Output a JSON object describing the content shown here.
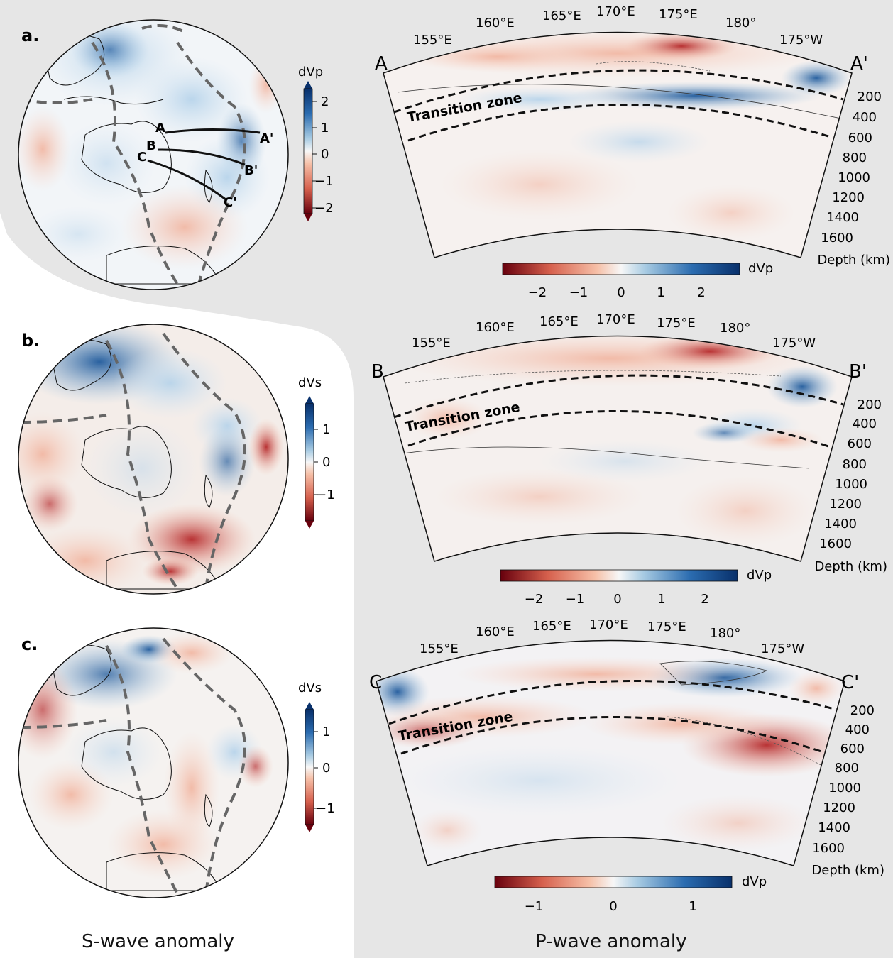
{
  "colors": {
    "panel_bg": "#e6e6e6",
    "blue_strong": "#2a5ea0",
    "blue_light": "#c9dcee",
    "red_strong": "#c23a37",
    "red_light": "#f6cdbf",
    "neutral": "#f7f7f7",
    "plate_boundary": "#666666",
    "coastline": "#111111"
  },
  "panels": {
    "a": {
      "label": "a.",
      "colorbar_label": "dVp",
      "colorbar_ticks": [
        "2",
        "1",
        "0",
        "−1",
        "−2"
      ],
      "profile_labels": [
        "A",
        "A'",
        "B",
        "B'",
        "C",
        "C'"
      ]
    },
    "b": {
      "label": "b.",
      "colorbar_label": "dVs",
      "colorbar_ticks": [
        "1",
        "0",
        "−1"
      ]
    },
    "c": {
      "label": "c.",
      "colorbar_label": "dVs",
      "colorbar_ticks": [
        "1",
        "0",
        "−1"
      ]
    }
  },
  "sections": [
    {
      "start": "A",
      "end": "A'",
      "lon_labels": [
        "155°E",
        "160°E",
        "165°E",
        "170°E",
        "175°E",
        "180°",
        "175°W"
      ],
      "depth_ticks": [
        "200",
        "400",
        "600",
        "800",
        "1000",
        "1200",
        "1400",
        "1600"
      ],
      "depth_label": "Depth (km)",
      "zone_label": "Transition zone",
      "colorbar_ticks": [
        "−2",
        "−1",
        "0",
        "1",
        "2"
      ],
      "colorbar_label": "dVp"
    },
    {
      "start": "B",
      "end": "B'",
      "lon_labels": [
        "155°E",
        "160°E",
        "165°E",
        "170°E",
        "175°E",
        "180°",
        "175°W"
      ],
      "depth_ticks": [
        "200",
        "400",
        "600",
        "800",
        "1000",
        "1200",
        "1400",
        "1600"
      ],
      "depth_label": "Depth (km)",
      "zone_label": "Transition zone",
      "colorbar_ticks": [
        "−2",
        "−1",
        "0",
        "1",
        "2"
      ],
      "colorbar_label": "dVp"
    },
    {
      "start": "C",
      "end": "C'",
      "lon_labels": [
        "155°E",
        "160°E",
        "165°E",
        "170°E",
        "175°E",
        "180°",
        "175°W"
      ],
      "depth_ticks": [
        "200",
        "400",
        "600",
        "800",
        "1000",
        "1200",
        "1400",
        "1600"
      ],
      "depth_label": "Depth (km)",
      "zone_label": "Transition zone",
      "colorbar_ticks": [
        "−1",
        "0",
        "1"
      ],
      "colorbar_label": "dVp"
    }
  ],
  "footer": {
    "left": "S-wave anomaly",
    "right": "P-wave anomaly"
  }
}
